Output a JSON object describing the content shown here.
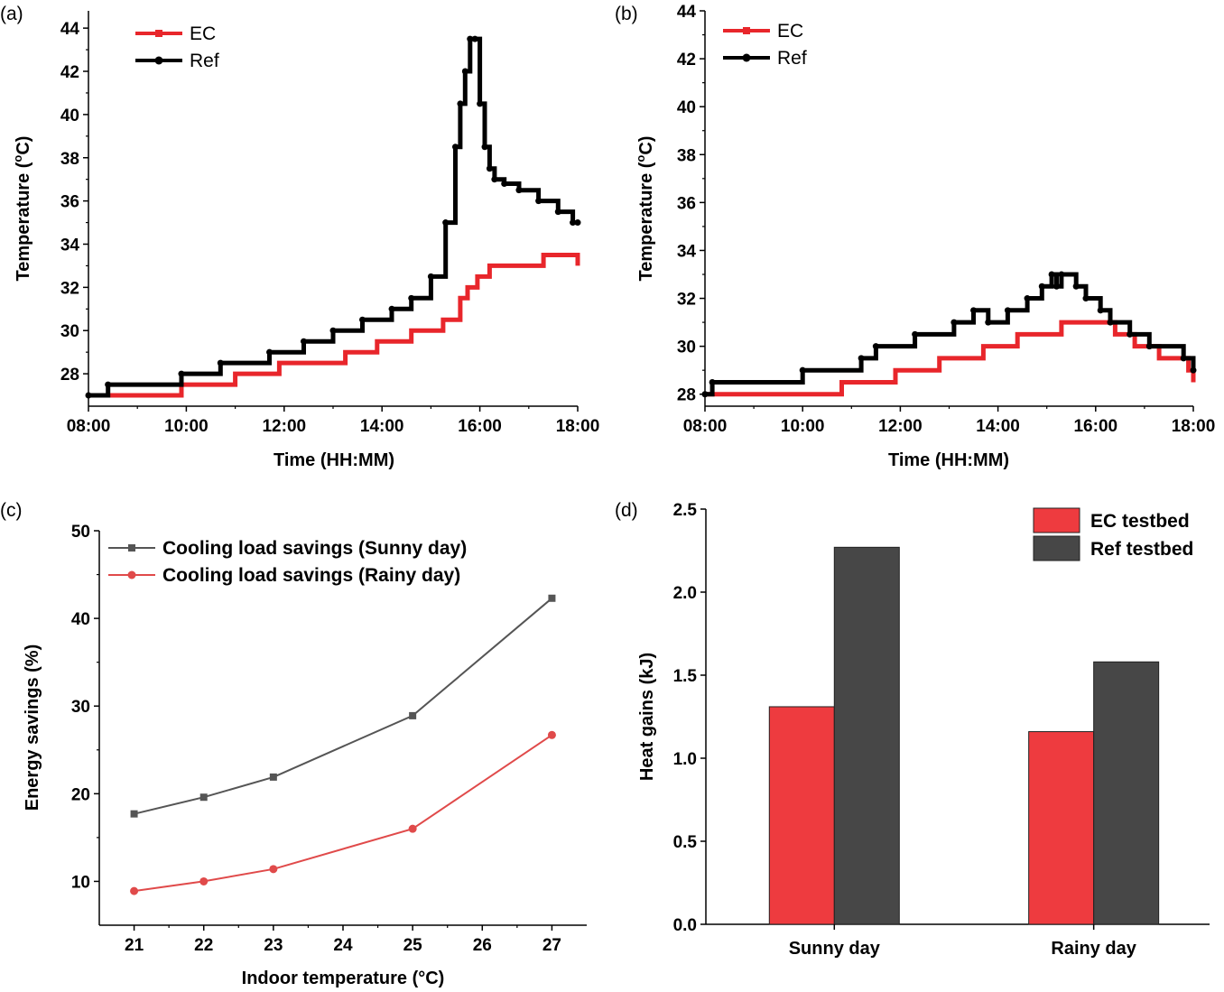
{
  "figure": {
    "panels": [
      "(a)",
      "(b)",
      "(c)",
      "(d)"
    ]
  },
  "colors": {
    "ec": "#e8262b",
    "ref": "#000000",
    "sunny_line": "#555555",
    "rainy_line": "#e04a4a",
    "ec_bar": "#ee3b3f",
    "ref_bar": "#474747"
  },
  "chart_data": [
    {
      "panel": "(a)",
      "type": "line",
      "title": "",
      "xlabel": "Time (HH:MM)",
      "ylabel": "Temperature (°C)",
      "ylabel_parts": [
        "Temperature (",
        "o",
        "C)"
      ],
      "xlim": [
        8,
        18
      ],
      "ylim": [
        26.5,
        44.8
      ],
      "x_ticks": [
        8,
        10,
        12,
        14,
        16,
        18
      ],
      "x_tick_labels": [
        "08:00",
        "10:00",
        "12:00",
        "14:00",
        "16:00",
        "18:00"
      ],
      "y_ticks": [
        28,
        30,
        32,
        34,
        36,
        38,
        40,
        42,
        44
      ],
      "legend_position": "top-left",
      "series": [
        {
          "name": "EC",
          "color_key": "ec",
          "marker": "square",
          "x": [
            8.0,
            8.45,
            9.9,
            11.0,
            11.9,
            12.55,
            13.25,
            13.9,
            14.6,
            15.25,
            15.6,
            15.75,
            15.95,
            16.2,
            17.1,
            17.3,
            18.0
          ],
          "y": [
            27.0,
            27.0,
            27.5,
            28.0,
            28.5,
            28.5,
            29.0,
            29.5,
            30.0,
            30.5,
            31.5,
            32.0,
            32.5,
            33.0,
            33.0,
            33.5,
            33.0
          ]
        },
        {
          "name": "Ref",
          "color_key": "ref",
          "marker": "circle",
          "x": [
            8.0,
            8.4,
            9.9,
            10.7,
            11.7,
            12.4,
            13.0,
            13.6,
            14.2,
            14.6,
            15.0,
            15.3,
            15.5,
            15.6,
            15.7,
            15.8,
            15.9,
            16.0,
            16.1,
            16.2,
            16.3,
            16.5,
            16.8,
            17.2,
            17.6,
            17.9,
            18.0
          ],
          "y": [
            27.0,
            27.5,
            28.0,
            28.5,
            29.0,
            29.5,
            30.0,
            30.5,
            31.0,
            31.5,
            32.5,
            35.0,
            38.5,
            40.5,
            42.0,
            43.5,
            43.5,
            40.5,
            38.5,
            37.5,
            37.0,
            36.8,
            36.5,
            36.0,
            35.5,
            35.0,
            35.0
          ]
        }
      ]
    },
    {
      "panel": "(b)",
      "type": "line",
      "title": "",
      "xlabel": "Time (HH:MM)",
      "ylabel": "Temperature (°C)",
      "ylabel_parts": [
        "Temperature (",
        "o",
        "C)"
      ],
      "xlim": [
        8,
        18
      ],
      "ylim": [
        27.5,
        44
      ],
      "x_ticks": [
        8,
        10,
        12,
        14,
        16,
        18
      ],
      "x_tick_labels": [
        "08:00",
        "10:00",
        "12:00",
        "14:00",
        "16:00",
        "18:00"
      ],
      "y_ticks": [
        28,
        30,
        32,
        34,
        36,
        38,
        40,
        42,
        44
      ],
      "legend_position": "top-left",
      "series": [
        {
          "name": "EC",
          "color_key": "ec",
          "marker": "square",
          "x": [
            8.0,
            8.1,
            10.8,
            11.9,
            12.8,
            13.7,
            14.4,
            15.3,
            16.0,
            16.4,
            16.8,
            17.3,
            17.9,
            18.0
          ],
          "y": [
            28.0,
            28.0,
            28.5,
            29.0,
            29.5,
            30.0,
            30.5,
            31.0,
            31.0,
            30.5,
            30.0,
            29.5,
            29.0,
            28.5
          ]
        },
        {
          "name": "Ref",
          "color_key": "ref",
          "marker": "circle",
          "x": [
            8.0,
            8.15,
            10.0,
            11.2,
            11.5,
            12.3,
            13.1,
            13.5,
            13.8,
            14.2,
            14.6,
            14.9,
            15.1,
            15.2,
            15.3,
            15.6,
            15.8,
            16.1,
            16.3,
            16.7,
            17.1,
            17.8,
            18.0
          ],
          "y": [
            28.0,
            28.5,
            29.0,
            29.5,
            30.0,
            30.5,
            31.0,
            31.5,
            31.0,
            31.5,
            32.0,
            32.5,
            33.0,
            32.5,
            33.0,
            32.5,
            32.0,
            31.5,
            31.0,
            30.5,
            30.0,
            29.5,
            29.0
          ]
        }
      ]
    },
    {
      "panel": "(c)",
      "type": "line",
      "title": "",
      "xlabel": "Indoor temperature (°C)",
      "ylabel": "Energy savings (%)",
      "xlim": [
        20.5,
        27.5
      ],
      "ylim": [
        5,
        50
      ],
      "x_ticks": [
        21,
        22,
        23,
        24,
        25,
        26,
        27
      ],
      "x_tick_labels": [
        "21",
        "22",
        "23",
        "24",
        "25",
        "26",
        "27"
      ],
      "y_ticks": [
        10,
        20,
        30,
        40,
        50
      ],
      "legend_position": "top-left",
      "series": [
        {
          "name": "Cooling load savings (Sunny day)",
          "color_key": "sunny_line",
          "marker": "square",
          "x": [
            21,
            22,
            23,
            25,
            27
          ],
          "y": [
            17.7,
            19.6,
            21.9,
            28.9,
            42.3
          ]
        },
        {
          "name": "Cooling load savings (Rainy day)",
          "color_key": "rainy_line",
          "marker": "circle",
          "x": [
            21,
            22,
            23,
            25,
            27
          ],
          "y": [
            8.9,
            10.0,
            11.4,
            16.0,
            26.7
          ]
        }
      ]
    },
    {
      "panel": "(d)",
      "type": "bar",
      "title": "",
      "xlabel": "",
      "ylabel": "Heat gains (kJ)",
      "categories": [
        "Sunny day",
        "Rainy day"
      ],
      "ylim": [
        0,
        2.5
      ],
      "y_ticks": [
        0.0,
        0.5,
        1.0,
        1.5,
        2.0,
        2.5
      ],
      "y_tick_labels": [
        "0.0",
        "0.5",
        "1.0",
        "1.5",
        "2.0",
        "2.5"
      ],
      "legend_position": "top-right",
      "series": [
        {
          "name": "EC testbed",
          "color_key": "ec_bar",
          "values": [
            1.31,
            1.16
          ]
        },
        {
          "name": "Ref testbed",
          "color_key": "ref_bar",
          "values": [
            2.27,
            1.58
          ]
        }
      ]
    }
  ]
}
